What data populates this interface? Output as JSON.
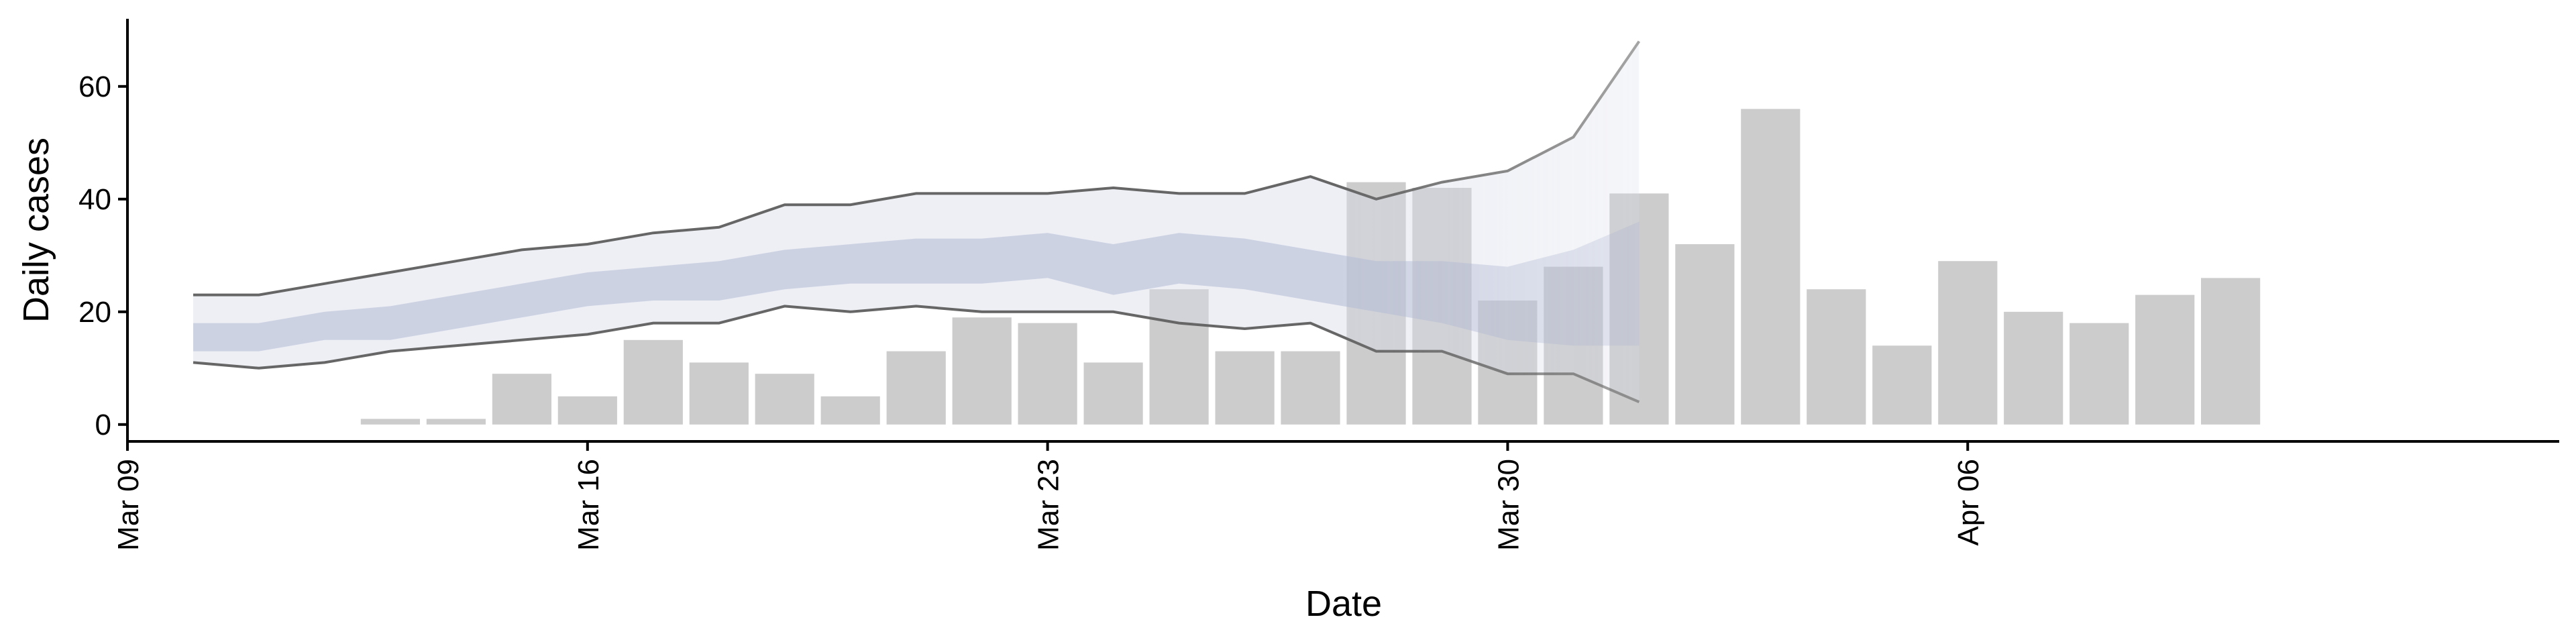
{
  "chart_data": {
    "type": "bar",
    "title": "",
    "xlabel": "Date",
    "ylabel": "Daily cases",
    "ylim": [
      -3,
      72
    ],
    "xlim": [
      "2020-03-09",
      "2020-04-15"
    ],
    "grid": false,
    "x_ticks": [
      {
        "date": "2020-03-09",
        "label": "Mar 09"
      },
      {
        "date": "2020-03-16",
        "label": "Mar 16"
      },
      {
        "date": "2020-03-23",
        "label": "Mar 23"
      },
      {
        "date": "2020-03-30",
        "label": "Mar 30"
      },
      {
        "date": "2020-04-06",
        "label": "Apr 06"
      }
    ],
    "y_ticks": [
      {
        "value": 0,
        "label": "0"
      },
      {
        "value": 20,
        "label": "20"
      },
      {
        "value": 40,
        "label": "40"
      },
      {
        "value": 60,
        "label": "60"
      }
    ],
    "colors": {
      "bars": "#cccccc",
      "band_outer": "#d8dbe8",
      "band_inner": "#b4bbd6",
      "bound_line": "#666666"
    },
    "bars": [
      {
        "date": "2020-03-13",
        "value": 1
      },
      {
        "date": "2020-03-14",
        "value": 1
      },
      {
        "date": "2020-03-15",
        "value": 9
      },
      {
        "date": "2020-03-16",
        "value": 5
      },
      {
        "date": "2020-03-17",
        "value": 15
      },
      {
        "date": "2020-03-18",
        "value": 11
      },
      {
        "date": "2020-03-19",
        "value": 9
      },
      {
        "date": "2020-03-20",
        "value": 5
      },
      {
        "date": "2020-03-21",
        "value": 13
      },
      {
        "date": "2020-03-22",
        "value": 19
      },
      {
        "date": "2020-03-23",
        "value": 18
      },
      {
        "date": "2020-03-24",
        "value": 11
      },
      {
        "date": "2020-03-25",
        "value": 24
      },
      {
        "date": "2020-03-26",
        "value": 13
      },
      {
        "date": "2020-03-27",
        "value": 13
      },
      {
        "date": "2020-03-28",
        "value": 43
      },
      {
        "date": "2020-03-29",
        "value": 42
      },
      {
        "date": "2020-03-30",
        "value": 22
      },
      {
        "date": "2020-03-31",
        "value": 28
      },
      {
        "date": "2020-04-01",
        "value": 41
      },
      {
        "date": "2020-04-02",
        "value": 32
      },
      {
        "date": "2020-04-03",
        "value": 56
      },
      {
        "date": "2020-04-04",
        "value": 24
      },
      {
        "date": "2020-04-05",
        "value": 14
      },
      {
        "date": "2020-04-06",
        "value": 29
      },
      {
        "date": "2020-04-07",
        "value": 20
      },
      {
        "date": "2020-04-08",
        "value": 18
      },
      {
        "date": "2020-04-09",
        "value": 23
      },
      {
        "date": "2020-04-10",
        "value": 26
      }
    ],
    "band": {
      "dates": [
        "2020-03-10",
        "2020-03-11",
        "2020-03-12",
        "2020-03-13",
        "2020-03-14",
        "2020-03-15",
        "2020-03-16",
        "2020-03-17",
        "2020-03-18",
        "2020-03-19",
        "2020-03-20",
        "2020-03-21",
        "2020-03-22",
        "2020-03-23",
        "2020-03-24",
        "2020-03-25",
        "2020-03-26",
        "2020-03-27",
        "2020-03-28",
        "2020-03-29",
        "2020-03-30",
        "2020-03-31",
        "2020-04-01"
      ],
      "outer_lower": [
        11,
        10,
        11,
        13,
        14,
        15,
        16,
        18,
        18,
        21,
        20,
        21,
        20,
        20,
        20,
        18,
        17,
        18,
        13,
        13,
        9,
        9,
        4
      ],
      "outer_upper": [
        23,
        23,
        25,
        27,
        29,
        31,
        32,
        34,
        35,
        39,
        39,
        41,
        41,
        41,
        42,
        41,
        41,
        44,
        40,
        43,
        45,
        51,
        68
      ],
      "inner_lower": [
        13,
        13,
        15,
        15,
        17,
        19,
        21,
        22,
        22,
        24,
        25,
        25,
        25,
        26,
        23,
        25,
        24,
        22,
        20,
        18,
        15,
        14,
        14
      ],
      "inner_upper": [
        18,
        18,
        20,
        21,
        23,
        25,
        27,
        28,
        29,
        31,
        32,
        33,
        33,
        34,
        32,
        34,
        33,
        31,
        29,
        29,
        28,
        31,
        36
      ]
    }
  }
}
